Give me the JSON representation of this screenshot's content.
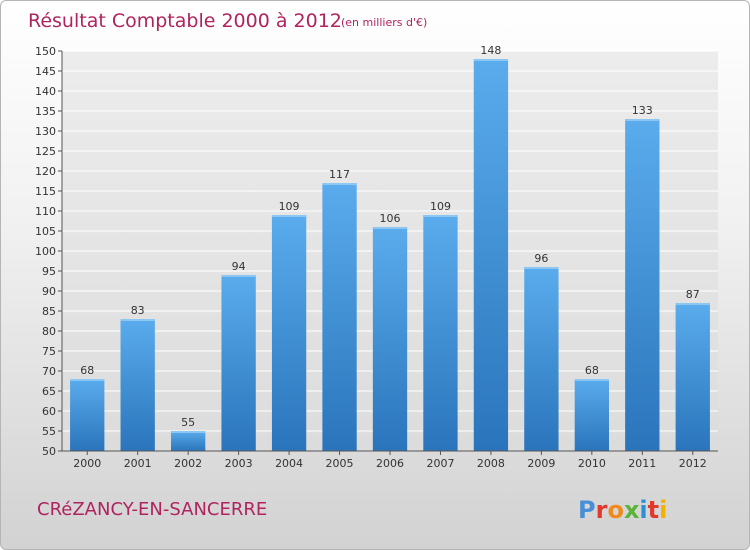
{
  "chart_data": {
    "type": "bar",
    "title": "Résultat Comptable 2000 à 2012",
    "subtitle": "(en milliers d'€)",
    "categories": [
      "2000",
      "2001",
      "2002",
      "2003",
      "2004",
      "2005",
      "2006",
      "2007",
      "2008",
      "2009",
      "2010",
      "2011",
      "2012"
    ],
    "values": [
      68,
      83,
      55,
      94,
      109,
      117,
      106,
      109,
      148,
      96,
      68,
      133,
      87
    ],
    "ylim": [
      50,
      150
    ],
    "yticks": [
      50,
      55,
      60,
      65,
      70,
      75,
      80,
      85,
      90,
      95,
      100,
      105,
      110,
      115,
      120,
      125,
      130,
      135,
      140,
      145,
      150
    ],
    "grid": true,
    "bar_color": "#3d8fd6",
    "title_color": "#b0245e"
  },
  "footer": {
    "commune": "CRéZANCY-EN-SANCERRE",
    "logo": "Proxiti"
  }
}
